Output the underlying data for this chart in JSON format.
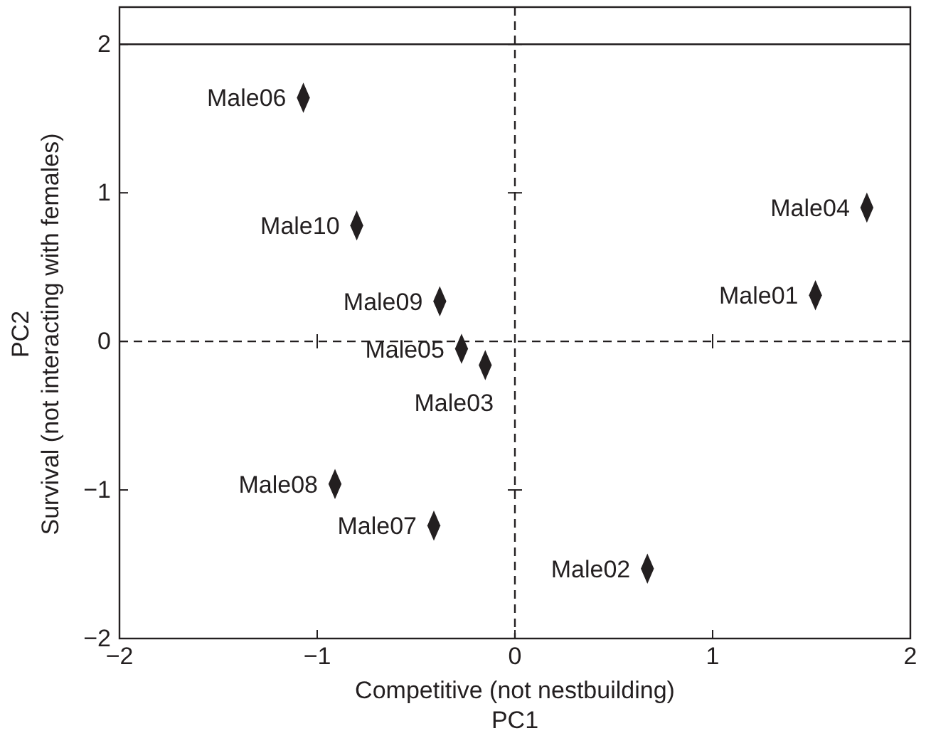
{
  "chart_data": {
    "type": "scatter",
    "xlabel": "Competitive (not nestbuilding)\nPC1",
    "ylabel": "PC2\nSurvival (not interacting with females)",
    "marker": "diamond",
    "grid": false,
    "xlim": [
      -2,
      2
    ],
    "ylim": [
      -2,
      2.25
    ],
    "xticks": [
      -2,
      -1,
      0,
      1,
      2
    ],
    "yticks": [
      -2,
      -1,
      0,
      1,
      2
    ],
    "series": [
      {
        "color": "#231f20",
        "x": [
          1.52,
          0.67,
          -0.15,
          1.78,
          -0.27,
          -1.07,
          -0.41,
          -0.91,
          -0.38,
          -0.8
        ],
        "values": [
          0.31,
          -1.53,
          -0.16,
          0.9,
          -0.05,
          1.64,
          -1.24,
          -0.96,
          0.27,
          0.78
        ]
      }
    ],
    "ref_lines": [
      {
        "axis": "x",
        "value": 0,
        "line_style": "dashed"
      },
      {
        "axis": "y",
        "value": 0,
        "line_style": "dashed"
      },
      {
        "axis": "y",
        "value": 2,
        "line_style": "solid"
      }
    ],
    "annotations": [
      {
        "text": "Male01",
        "x": 1.52,
        "y": 0.31
      },
      {
        "text": "Male02",
        "x": 0.67,
        "y": -1.53
      },
      {
        "text": "Male03",
        "x": -0.15,
        "y": -0.16
      },
      {
        "text": "Male04",
        "x": 1.78,
        "y": 0.9
      },
      {
        "text": "Male05",
        "x": -0.27,
        "y": -0.05
      },
      {
        "text": "Male06",
        "x": -1.07,
        "y": 1.64
      },
      {
        "text": "Male07",
        "x": -0.41,
        "y": -1.24
      },
      {
        "text": "Male08",
        "x": -0.91,
        "y": -0.96
      },
      {
        "text": "Male09",
        "x": -0.38,
        "y": 0.27
      },
      {
        "text": "Male10",
        "x": -0.8,
        "y": 0.78
      }
    ]
  }
}
